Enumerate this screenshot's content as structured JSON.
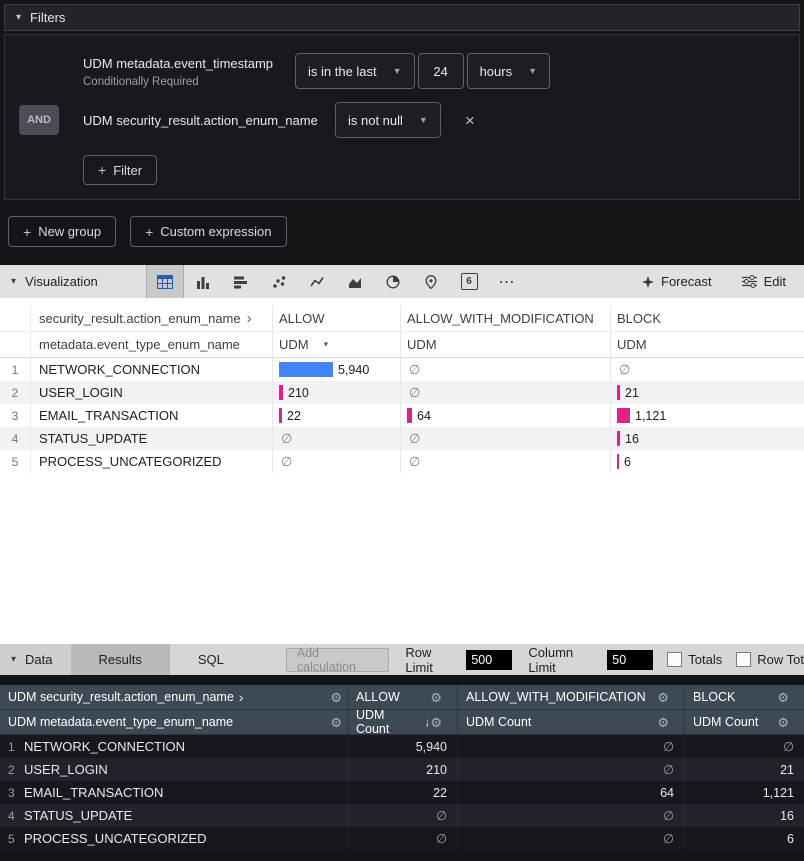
{
  "filters": {
    "title": "Filters",
    "row1": {
      "field": "UDM metadata.event_timestamp",
      "note": "Conditionally Required",
      "operator": "is in the last",
      "value": "24",
      "unit": "hours"
    },
    "row2": {
      "conjunction": "AND",
      "field": "UDM security_result.action_enum_name",
      "operator": "is not null"
    },
    "add_filter": "Filter",
    "new_group": "New group",
    "custom_expression": "Custom expression"
  },
  "viz": {
    "title": "Visualization",
    "single_value_glyph": "6",
    "more_glyph": "⋯",
    "forecast": "Forecast",
    "edit": "Edit"
  },
  "pivot_table": {
    "pivot_field": "security_result.action_enum_name",
    "row_field": "metadata.event_type_enum_name",
    "pivots": [
      "ALLOW",
      "ALLOW_WITH_MODIFICATION",
      "BLOCK"
    ],
    "measures": [
      "UDM",
      "UDM",
      "UDM"
    ],
    "rows": [
      {
        "n": "1",
        "name": "NETWORK_CONNECTION",
        "allow": "5,940",
        "allow_bar": {
          "w": 54,
          "color": "#4285f4"
        },
        "awm": "∅",
        "block": "∅"
      },
      {
        "n": "2",
        "name": "USER_LOGIN",
        "allow": "210",
        "allow_bar": {
          "w": 4,
          "color": "#e0218a"
        },
        "awm": "∅",
        "block": "21",
        "block_bar": {
          "w": 3,
          "color": "#e0218a"
        }
      },
      {
        "n": "3",
        "name": "EMAIL_TRANSACTION",
        "allow": "22",
        "allow_bar": {
          "w": 3,
          "color": "#e0218a"
        },
        "awm": "64",
        "awm_bar": {
          "w": 5,
          "color": "#e0218a"
        },
        "block": "1,121",
        "block_bar": {
          "w": 13,
          "color": "#e0218a"
        }
      },
      {
        "n": "4",
        "name": "STATUS_UPDATE",
        "allow": "∅",
        "awm": "∅",
        "block": "16",
        "block_bar": {
          "w": 3,
          "color": "#e0218a"
        }
      },
      {
        "n": "5",
        "name": "PROCESS_UNCATEGORIZED",
        "allow": "∅",
        "awm": "∅",
        "block": "6",
        "block_bar": {
          "w": 2,
          "color": "#e0218a"
        }
      }
    ]
  },
  "data_bar": {
    "title": "Data",
    "tab_results": "Results",
    "tab_sql": "SQL",
    "add_calculation": "Add calculation",
    "row_limit_label": "Row Limit",
    "row_limit_value": "500",
    "column_limit_label": "Column Limit",
    "column_limit_value": "50",
    "totals_label": "Totals",
    "row_totals_label": "Row Tot"
  },
  "results_table": {
    "pivot_header": "UDM security_result.action_enum_name",
    "row_header": "UDM metadata.event_type_enum_name",
    "pivots": [
      "ALLOW",
      "ALLOW_WITH_MODIFICATION",
      "BLOCK"
    ],
    "measures": [
      "UDM Count",
      "UDM Count",
      "UDM Count"
    ],
    "sort_arrow": "↓",
    "rows": [
      {
        "n": "1",
        "name": "NETWORK_CONNECTION",
        "allow": "5,940",
        "awm": "∅",
        "block": "∅"
      },
      {
        "n": "2",
        "name": "USER_LOGIN",
        "allow": "210",
        "awm": "∅",
        "block": "21"
      },
      {
        "n": "3",
        "name": "EMAIL_TRANSACTION",
        "allow": "22",
        "awm": "64",
        "block": "1,121"
      },
      {
        "n": "4",
        "name": "STATUS_UPDATE",
        "allow": "∅",
        "awm": "∅",
        "block": "16"
      },
      {
        "n": "5",
        "name": "PROCESS_UNCATEGORIZED",
        "allow": "∅",
        "awm": "∅",
        "block": "6"
      }
    ]
  }
}
